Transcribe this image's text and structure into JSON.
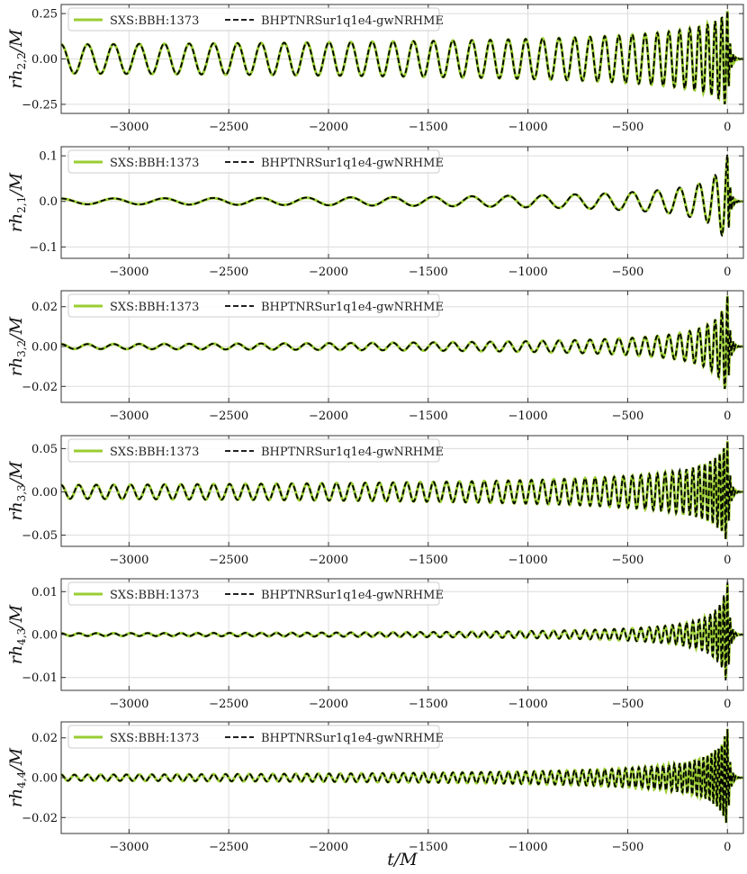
{
  "chart_data": [
    {
      "type": "line",
      "ylabel": {
        "base": "rh",
        "sub": "2,2",
        "unit": "/M"
      },
      "xlim": [
        -3340,
        80
      ],
      "ylim": [
        -0.3,
        0.3
      ],
      "yticks": [
        -0.25,
        0.0,
        0.25
      ],
      "ytick_labels": [
        "−0.25",
        "0.00",
        "0.25"
      ],
      "xticks": [
        -3000,
        -2500,
        -2000,
        -1500,
        -1000,
        -500,
        0
      ],
      "xtick_labels": [
        "−3000",
        "−2500",
        "−2000",
        "−1500",
        "−1000",
        "−500",
        "0"
      ],
      "amp_start": 0.08,
      "amp_peak": 0.27,
      "cycles": 38,
      "grid": true,
      "legend_placement": "top-left"
    },
    {
      "type": "line",
      "ylabel": {
        "base": "rh",
        "sub": "2,1",
        "unit": "/M"
      },
      "xlim": [
        -3340,
        80
      ],
      "ylim": [
        -0.125,
        0.12
      ],
      "yticks": [
        -0.1,
        0.0,
        0.1
      ],
      "ytick_labels": [
        "−0.1",
        "0.0",
        "0.1"
      ],
      "xticks": [
        -3000,
        -2500,
        -2000,
        -1500,
        -1000,
        -500,
        0
      ],
      "xtick_labels": [
        "−3000",
        "−2500",
        "−2000",
        "−1500",
        "−1000",
        "−500",
        "0"
      ],
      "amp_start": 0.006,
      "amp_peak": 0.1,
      "cycles": 19,
      "grid": true,
      "legend_placement": "top-left"
    },
    {
      "type": "line",
      "ylabel": {
        "base": "rh",
        "sub": "3,2",
        "unit": "/M"
      },
      "xlim": [
        -3340,
        80
      ],
      "ylim": [
        -0.028,
        0.028
      ],
      "yticks": [
        -0.02,
        0.0,
        0.02
      ],
      "ytick_labels": [
        "−0.02",
        "0.00",
        "0.02"
      ],
      "xticks": [
        -3000,
        -2500,
        -2000,
        -1500,
        -1000,
        -500,
        0
      ],
      "xtick_labels": [
        "−3000",
        "−2500",
        "−2000",
        "−1500",
        "−1000",
        "−500",
        "0"
      ],
      "amp_start": 0.0012,
      "amp_peak": 0.026,
      "cycles": 38,
      "grid": true,
      "legend_placement": "top-left"
    },
    {
      "type": "line",
      "ylabel": {
        "base": "rh",
        "sub": "3,3",
        "unit": "/M"
      },
      "xlim": [
        -3340,
        80
      ],
      "ylim": [
        -0.063,
        0.065
      ],
      "yticks": [
        -0.05,
        0.0,
        0.05
      ],
      "ytick_labels": [
        "−0.05",
        "0.00",
        "0.05"
      ],
      "xticks": [
        -3000,
        -2500,
        -2000,
        -1500,
        -1000,
        -500,
        0
      ],
      "xtick_labels": [
        "−3000",
        "−2500",
        "−2000",
        "−1500",
        "−1000",
        "−500",
        "0"
      ],
      "amp_start": 0.008,
      "amp_peak": 0.06,
      "cycles": 57,
      "grid": true,
      "legend_placement": "top-left"
    },
    {
      "type": "line",
      "ylabel": {
        "base": "rh",
        "sub": "4,3",
        "unit": "/M"
      },
      "xlim": [
        -3340,
        80
      ],
      "ylim": [
        -0.013,
        0.013
      ],
      "yticks": [
        -0.01,
        0.0,
        0.01
      ],
      "ytick_labels": [
        "−0.01",
        "0.00",
        "0.01"
      ],
      "xticks": [
        -3000,
        -2500,
        -2000,
        -1500,
        -1000,
        -500,
        0
      ],
      "xtick_labels": [
        "−3000",
        "−2500",
        "−2000",
        "−1500",
        "−1000",
        "−500",
        "0"
      ],
      "amp_start": 0.0003,
      "amp_peak": 0.012,
      "cycles": 57,
      "grid": true,
      "legend_placement": "top-left"
    },
    {
      "type": "line",
      "ylabel": {
        "base": "rh",
        "sub": "4,4",
        "unit": "/M"
      },
      "xlim": [
        -3340,
        80
      ],
      "ylim": [
        -0.028,
        0.028
      ],
      "yticks": [
        -0.02,
        0.0,
        0.02
      ],
      "ytick_labels": [
        "−0.02",
        "0.00",
        "0.02"
      ],
      "xticks": [
        -3000,
        -2500,
        -2000,
        -1500,
        -1000,
        -500,
        0
      ],
      "xtick_labels": [
        "−3000",
        "−2500",
        "−2000",
        "−1500",
        "−1000",
        "−500",
        "0"
      ],
      "amp_start": 0.0015,
      "amp_peak": 0.025,
      "cycles": 76,
      "grid": true,
      "legend_placement": "top-left"
    }
  ],
  "xlabel": "t/M",
  "legend": [
    {
      "label": "SXS:BBH:1373",
      "color": "#9acd32",
      "style": "solid"
    },
    {
      "label": "BHPTNRSur1q1e4-gwNRHME",
      "color": "#000000",
      "style": "dashed"
    }
  ],
  "colors": {
    "nr": "#9acd32",
    "model": "#000000",
    "grid": "#dcdcdc",
    "axes": "#333333"
  }
}
